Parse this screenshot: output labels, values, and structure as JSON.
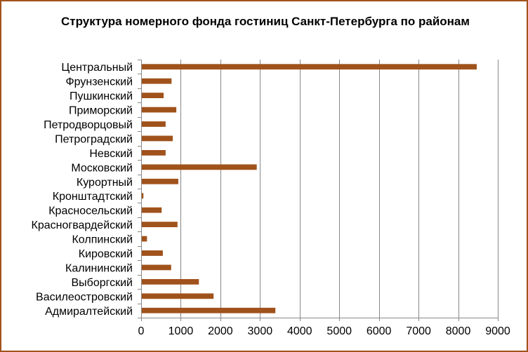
{
  "chart_data": {
    "type": "bar",
    "orientation": "horizontal",
    "title": "Структура номерного фонда гостиниц Санкт-Петербурга по районам",
    "categories": [
      "Центральный",
      "Фрунзенский",
      "Пушкинский",
      "Приморский",
      "Петродворцовый",
      "Петроградский",
      "Невский",
      "Московский",
      "Курортный",
      "Кронштадтский",
      "Красносельский",
      "Красногвардейский",
      "Колпинский",
      "Кировский",
      "Калининский",
      "Выборгский",
      "Василеостровский",
      "Адмиралтейский"
    ],
    "values": [
      8450,
      750,
      550,
      870,
      600,
      780,
      600,
      2900,
      920,
      40,
      500,
      900,
      130,
      530,
      740,
      1440,
      1810,
      3370
    ],
    "xlim": [
      0,
      9000
    ],
    "x_ticks": [
      0,
      1000,
      2000,
      3000,
      4000,
      5000,
      6000,
      7000,
      8000,
      9000
    ],
    "grid": true,
    "legend": "none",
    "bar_color": "#a0521b",
    "grid_color": "#888888",
    "axis_color": "#888888",
    "frame_color": "#a0521b"
  }
}
